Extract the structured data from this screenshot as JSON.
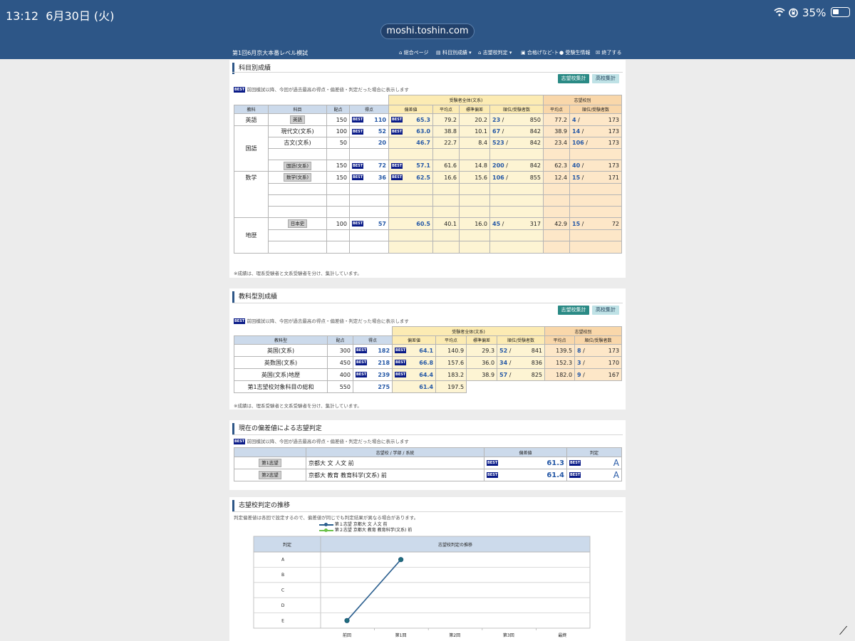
{
  "status": {
    "time": "13:12",
    "date": "6月30日 (火)",
    "battery": "35%",
    "url": "moshi.toshin.com"
  },
  "nav": {
    "title": "第1回6月京大本番レベル模試",
    "items": [
      "総合ページ",
      "科目別成績",
      "志望校判定",
      "合格げなど-ト",
      "受験生情報",
      "終了する"
    ]
  },
  "buttons": {
    "shibou": "志望校集計",
    "koukou": "高校集計"
  },
  "s1": {
    "title": "科目別成績",
    "best_note": "前回模試以降、今回が過去最高の得点・偏差値・判定だった場合に表示します",
    "group_all": "受験者全体(文系)",
    "group_school": "志望校別",
    "headers": [
      "教科",
      "科目",
      "配点",
      "得点",
      "偏差値",
      "平均点",
      "標準偏差",
      "順位/受験者数",
      "平均点",
      "順位/受験者数"
    ],
    "groups": {
      "eng": "英語",
      "jp": "国語",
      "math": "数学",
      "hist": "地歴"
    },
    "rows": [
      {
        "subject": "英語",
        "max": "150",
        "score": "110",
        "dev": "65.3",
        "avg": "79.2",
        "sd": "20.2",
        "rank": "23",
        "total": "850",
        "savg": "77.2",
        "srank": "4",
        "stotal": "173"
      },
      {
        "subject": "現代文(文系)",
        "max": "100",
        "score": "52",
        "dev": "63.0",
        "avg": "38.8",
        "sd": "10.1",
        "rank": "67",
        "total": "842",
        "savg": "38.9",
        "srank": "14",
        "stotal": "173"
      },
      {
        "subject": "古文(文系)",
        "max": "50",
        "score": "20",
        "dev": "46.7",
        "avg": "22.7",
        "sd": "8.4",
        "rank": "523",
        "total": "842",
        "savg": "23.4",
        "srank": "106",
        "stotal": "173"
      },
      {
        "subject": "国語(文系)",
        "max": "150",
        "score": "72",
        "dev": "57.1",
        "avg": "61.6",
        "sd": "14.8",
        "rank": "200",
        "total": "842",
        "savg": "62.3",
        "srank": "40",
        "stotal": "173"
      },
      {
        "subject": "数学(文系)",
        "max": "150",
        "score": "36",
        "dev": "62.5",
        "avg": "16.6",
        "sd": "15.6",
        "rank": "106",
        "total": "855",
        "savg": "12.4",
        "srank": "15",
        "stotal": "171"
      },
      {
        "subject": "日本史",
        "max": "100",
        "score": "57",
        "dev": "60.5",
        "avg": "40.1",
        "sd": "16.0",
        "rank": "45",
        "total": "317",
        "savg": "42.9",
        "srank": "15",
        "stotal": "72"
      }
    ],
    "footnote": "※成績は、理系受験者と文系受験者を分け、集計しています。"
  },
  "s2": {
    "title": "教科型別成績",
    "best_note": "前回模試以降、今回が過去最高の得点・偏差値・判定だった場合に表示します",
    "group_all": "受験者全体(文系)",
    "group_school": "志望校別",
    "headers": [
      "教科型",
      "配点",
      "得点",
      "偏差値",
      "平均点",
      "標準偏差",
      "順位/受験者数",
      "平均点",
      "順位/受験者数"
    ],
    "rows": [
      {
        "name": "英国(文系)",
        "max": "300",
        "score": "182",
        "dev": "64.1",
        "avg": "140.9",
        "sd": "29.3",
        "rank": "52",
        "total": "841",
        "savg": "139.5",
        "srank": "8",
        "stotal": "173"
      },
      {
        "name": "英数国(文系)",
        "max": "450",
        "score": "218",
        "dev": "66.8",
        "avg": "157.6",
        "sd": "36.0",
        "rank": "34",
        "total": "836",
        "savg": "152.3",
        "srank": "3",
        "stotal": "170"
      },
      {
        "name": "英国(文系)地歴",
        "max": "400",
        "score": "239",
        "dev": "64.4",
        "avg": "183.2",
        "sd": "38.9",
        "rank": "57",
        "total": "825",
        "savg": "182.0",
        "srank": "9",
        "stotal": "167"
      },
      {
        "name": "第1志望校対象科目の総和",
        "max": "550",
        "score": "275",
        "dev": "61.4",
        "avg": "197.5"
      }
    ],
    "footnote": "※成績は、理系受験者と文系受験者を分け、集計しています。"
  },
  "s3": {
    "title": "現在の偏差値による志望判定",
    "best_note": "前回模試以降、今回が過去最高の得点・偏差値・判定だった場合に表示します",
    "headers": [
      "志望校 / 学部 / 系統",
      "偏差値",
      "判定"
    ],
    "rows": [
      {
        "label": "第1志望",
        "school": "京都大 文 人文 前",
        "dev": "61.3",
        "grade": "A"
      },
      {
        "label": "第2志望",
        "school": "京都大 教育 教育科学(文系) 前",
        "dev": "61.4",
        "grade": "A"
      }
    ]
  },
  "s4": {
    "title": "志望校判定の推移",
    "note": "判定偏差値は各回で設定するので、偏差値が同じでも判定結果が異なる場合があります。",
    "col_head": "判定",
    "chart_title": "志望校判定の推移"
  },
  "best": "BEST",
  "chart_data": {
    "type": "line",
    "title": "志望校判定の推移",
    "y_categories": [
      "A",
      "B",
      "C",
      "D",
      "E"
    ],
    "x": [
      "前回",
      "第1回",
      "第2回",
      "第3回",
      "最終"
    ],
    "series": [
      {
        "name": "第１志望 京都大 文 人文 前",
        "values": [
          "E",
          "A",
          null,
          null,
          null
        ],
        "color": "#2a5e8e"
      },
      {
        "name": "第２志望 京都大 教育 教育科学(文系) 前",
        "values": [
          null,
          null,
          null,
          null,
          null
        ],
        "color": "#6cc24a"
      }
    ]
  }
}
